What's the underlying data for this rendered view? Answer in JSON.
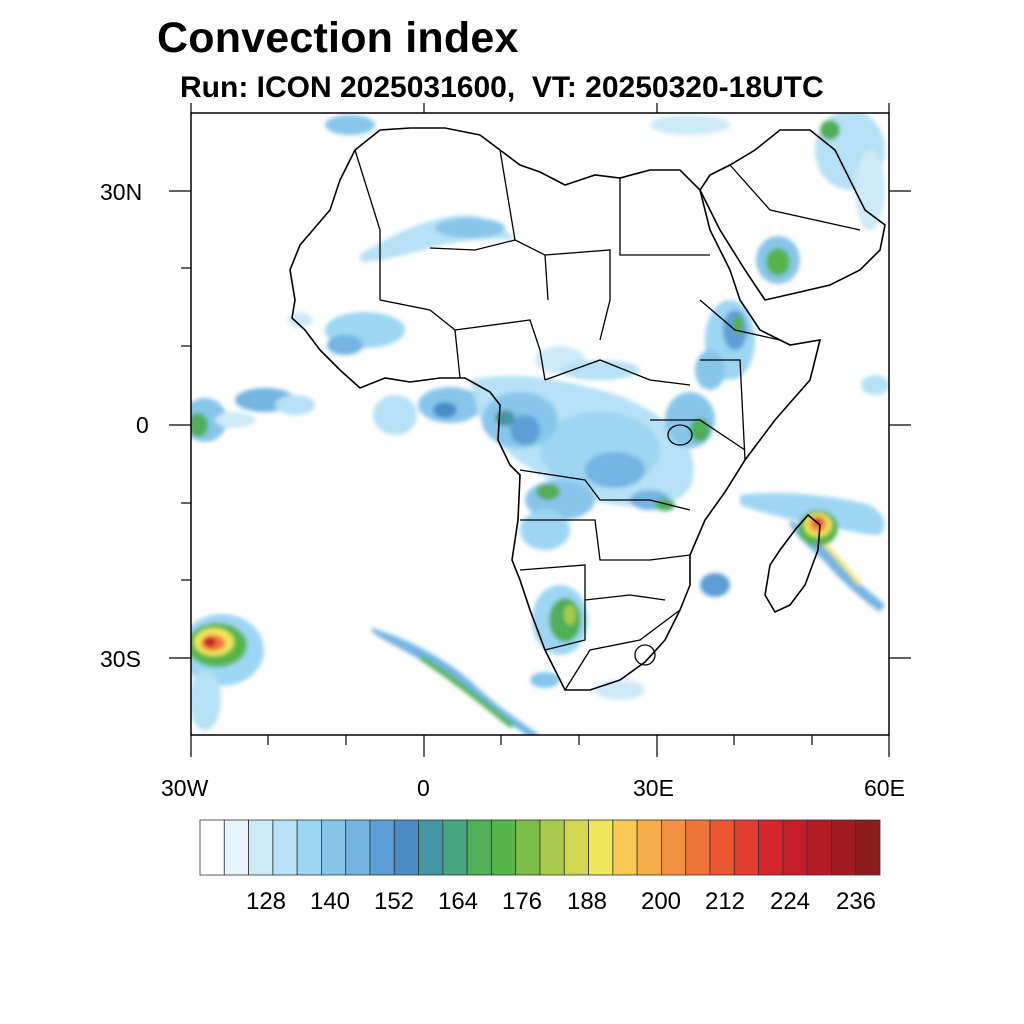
{
  "title": "Convection index",
  "subtitle": "Run: ICON 2025031600,  VT: 20250320-18UTC",
  "axes": {
    "x_ticks": [
      {
        "label": "30W",
        "lon": -30
      },
      {
        "label": "0",
        "lon": 0
      },
      {
        "label": "30E",
        "lon": 30
      },
      {
        "label": "60E",
        "lon": 60
      }
    ],
    "y_ticks": [
      {
        "label": "30N",
        "lat": 30
      },
      {
        "label": "0",
        "lat": 0
      },
      {
        "label": "30S",
        "lat": -30
      }
    ],
    "lon_range": [
      -30,
      60
    ],
    "lat_range": [
      -40,
      40
    ]
  },
  "colorbar": {
    "labels": [
      "128",
      "140",
      "152",
      "164",
      "176",
      "188",
      "200",
      "212",
      "224",
      "236"
    ],
    "colors": [
      "#ffffff",
      "#e6f4fc",
      "#cdeaf8",
      "#b6e1f6",
      "#9dd6f3",
      "#87c6ea",
      "#74b4e3",
      "#5d9ed6",
      "#4a8cc6",
      "#4796a3",
      "#48a582",
      "#4fae56",
      "#55b54a",
      "#7cbd48",
      "#a8cb4b",
      "#cfd84e",
      "#f1e55b",
      "#f8c955",
      "#f7ad4b",
      "#f39142",
      "#ef743a",
      "#e85732",
      "#e13c2e",
      "#d6262c",
      "#c41d2a",
      "#b21b25",
      "#a01a21",
      "#8b1a1c"
    ]
  }
}
